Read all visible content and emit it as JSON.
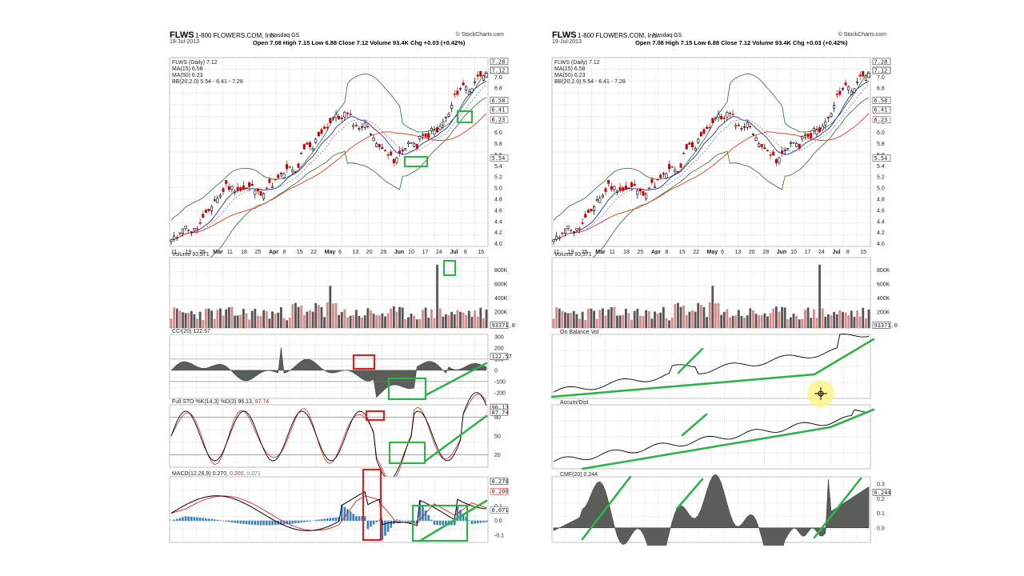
{
  "header": {
    "symbol": "FLWS",
    "company": "1-800 FLOWERS.COM, Inc.",
    "exchange": "Nasdaq GS",
    "brand": "© StockCharts.com",
    "date": "19-Jul-2013",
    "ohlc": "Open 7.08  High 7.15  Low 6.88  Close 7.12  Volume 93.4K  Chg +0.03 (+0.42%)"
  },
  "legend": {
    "price": "FLWS (Daily) 7.12",
    "ma15": "MA(15) 6.58",
    "ma50": "MA(50) 6.23",
    "bb": "BB(20,2.0) 5.54 - 6.41 - 7.28"
  },
  "colors": {
    "up": "#000000",
    "down": "#cc0000",
    "ma15": "#2233aa",
    "ma50": "#e03a1e",
    "bb": "#2b6e2b",
    "hist": "#3a7fc0",
    "green": "#2fb24a",
    "red": "#dd2222",
    "vol": "#555555",
    "volred": "#d88888",
    "area": "#5a5e58"
  },
  "price_panel": {
    "y_ticks": [
      "7.0",
      "6.8",
      "6.6",
      "6.4",
      "6.2",
      "6.0",
      "5.8",
      "5.6",
      "5.4",
      "5.2",
      "5.0",
      "4.8",
      "4.6",
      "4.4",
      "4.2",
      "4.0"
    ],
    "tags": [
      "7.28",
      "7.12",
      "6.58",
      "6.41",
      "6.23",
      "5.54"
    ],
    "x_ticks": [
      "11",
      "19",
      "25",
      "Mar",
      "11",
      "18",
      "25",
      "Apr",
      "8",
      "15",
      "22",
      "May",
      "6",
      "13",
      "20",
      "28",
      "Jun",
      "10",
      "17",
      "24",
      "Jul",
      "8",
      "15"
    ]
  },
  "volume_panel": {
    "title": "Volume 93,371",
    "y_ticks": [
      "800K",
      "600K",
      "400K",
      "200K"
    ],
    "tag": "93371.0"
  },
  "cci_panel": {
    "title": "CCI(20) 122.57",
    "y_ticks": [
      "300",
      "200",
      "100",
      "0",
      "-100",
      "-200"
    ],
    "tag": "122.57"
  },
  "sto_panel": {
    "title_prefix": "Full STO %K(14,3) %D(3) 96.13,",
    "title_d": "87.74",
    "y_ticks": [
      "80",
      "50",
      "20"
    ],
    "tags": [
      "96.13",
      "87.74"
    ]
  },
  "macd_panel": {
    "title_prefix": "MACD(12,26,9) 0.270,",
    "title_signal": "0.200,",
    "title_hist": "0.071",
    "y_ticks": [
      "0.2",
      "0.1",
      "0.0",
      "-0.1"
    ],
    "tags": [
      "0.270",
      "0.200",
      "0.071"
    ]
  },
  "obv_panel": {
    "title": "On Balance Vol"
  },
  "ad_panel": {
    "title": "Accum/Dist"
  },
  "cmf_panel": {
    "title": "CMF(20) 0.244",
    "y_ticks": [
      "0.3",
      "0.2",
      "0.1",
      "0.0"
    ],
    "tag": "0.244"
  },
  "chart_data": {
    "type": "line",
    "title": "FLWS 1-800 FLOWERS.COM, Inc.",
    "x_range": [
      "Feb 2013",
      "19-Jul-2013"
    ],
    "ylim": [
      4.0,
      7.3
    ],
    "series": [
      {
        "name": "FLWS (Daily)",
        "values": [
          4.05,
          4.12,
          4.3,
          4.28,
          4.22,
          4.3,
          4.45,
          4.6,
          4.8,
          4.85,
          5.05,
          5.0,
          5.0,
          4.95,
          5.0,
          5.02,
          4.9,
          4.95,
          5.05,
          5.1,
          5.2,
          5.3,
          5.35,
          5.25,
          5.6,
          5.75,
          5.7,
          5.95,
          6.05,
          6.15,
          6.3,
          6.25,
          6.35,
          6.28,
          6.1,
          6.12,
          6.15,
          5.98,
          5.7,
          5.8,
          5.6,
          5.45,
          5.6,
          5.75,
          5.85,
          5.7,
          5.95,
          5.9,
          6.05,
          6.0,
          6.2,
          6.3,
          6.6,
          6.8,
          6.85,
          6.75,
          6.95,
          7.05,
          7.12
        ]
      },
      {
        "name": "MA(15)",
        "last": 6.58
      },
      {
        "name": "MA(50)",
        "last": 6.23
      },
      {
        "name": "BB(20,2.0)",
        "lower": 5.54,
        "middle": 6.41,
        "upper": 7.28
      }
    ],
    "indicators": {
      "volume": 93371,
      "cci": 122.57,
      "sto_k": 96.13,
      "sto_d": 87.74,
      "macd": 0.27,
      "signal": 0.2,
      "hist": 0.071,
      "cmf": 0.244
    }
  }
}
